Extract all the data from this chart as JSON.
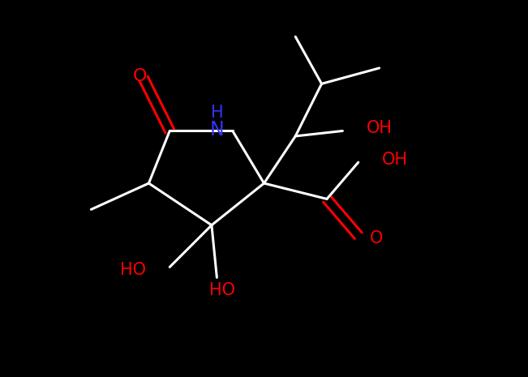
{
  "background_color": "#000000",
  "bond_color": "#ffffff",
  "NH_color": "#3333ff",
  "O_color": "#ff0000",
  "OH_color": "#ff0000",
  "figsize": [
    6.51,
    4.65
  ],
  "dpi": 100,
  "lw": 2.2,
  "fs_label": 15,
  "xlim": [
    -0.5,
    8.5
  ],
  "ylim": [
    -1.2,
    6.0
  ]
}
